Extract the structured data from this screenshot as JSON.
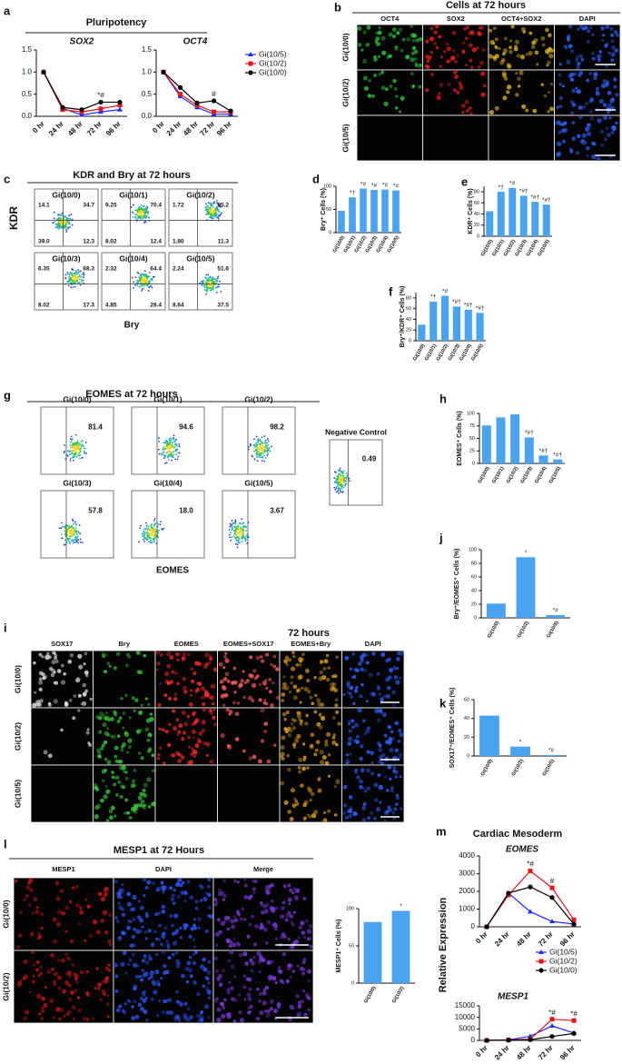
{
  "chart_data": [
    {
      "type": "line",
      "panel": "a",
      "title": "Pluripotency",
      "subtitle": "SOX2",
      "categories": [
        "0 hr",
        "24 hr",
        "48 hr",
        "72 hr",
        "96 hr"
      ],
      "series": [
        {
          "color": "#1f2bff",
          "values": [
            1,
            0.18,
            0.03,
            0.1,
            0.15
          ]
        },
        {
          "color": "#e8141c",
          "values": [
            1,
            0.15,
            0.1,
            0.17,
            0.25
          ]
        },
        {
          "color": "#000000",
          "values": [
            1,
            0.2,
            0.15,
            0.32,
            0.32
          ]
        }
      ],
      "ylim": [
        0,
        1.5
      ],
      "yticks": [
        {
          "value": 0,
          "label": "0.0"
        },
        0.5,
        {
          "value": 1,
          "label": "1.0"
        },
        1.5
      ],
      "annotations": [
        "*#"
      ]
    },
    {
      "type": "line",
      "subtitle": "OCT4",
      "categories": [
        "0 hr",
        "24 hr",
        "48 hr",
        "72 hr",
        "96 hr"
      ],
      "series": [
        {
          "name": "Gi(10/5)",
          "color": "#1f2bff",
          "values": [
            1,
            0.45,
            0.2,
            0.05,
            0.05
          ]
        },
        {
          "name": "Gi(10/2)",
          "color": "#e8141c",
          "values": [
            1,
            0.5,
            0.25,
            0.1,
            0.1
          ]
        },
        {
          "name": "Gi(10/0)",
          "color": "#000000",
          "values": [
            1,
            0.65,
            0.3,
            0.35,
            0.12
          ]
        }
      ],
      "ylim": [
        0,
        1.5
      ],
      "yticks": [
        {
          "value": 0,
          "label": "0.0"
        },
        0.5,
        {
          "value": 1,
          "label": "1.0"
        },
        1.5
      ],
      "annotations": [
        "#"
      ],
      "legend": "right"
    },
    {
      "type": "image-grid",
      "panel": "b",
      "title": "Cells at 72 hours",
      "columns": [
        {
          "name": "OCT4",
          "color": "#22b14c"
        },
        {
          "name": "SOX2",
          "color": "#e8141c"
        },
        {
          "name": "OCT4+SOX2",
          "color": "#c9a21a"
        },
        {
          "name": "DAPI",
          "color": "#1f5fd6"
        }
      ],
      "rows": [
        "Gi(10/0)",
        "Gi(10/2)",
        "Gi(10/5)"
      ]
    },
    {
      "type": "flow",
      "panel": "c",
      "title": "KDR and Bry at 72 hours",
      "xlabel": "Bry",
      "ylabel": "KDR",
      "plots": [
        {
          "name": "Gi(10/0)",
          "values": [
            14.1,
            34.7,
            39,
            12.3
          ],
          "value_labels": [
            "14.1",
            "34.7",
            "39.0",
            "12.3"
          ]
        },
        {
          "name": "Gi(10/1)",
          "values": [
            9.25,
            70.4,
            8.02,
            12.4
          ],
          "value_labels": [
            "9.25",
            "70.4",
            "8.02",
            "12.4"
          ]
        },
        {
          "name": "Gi(10/2)",
          "values": [
            1.72,
            85.2,
            1.8,
            11.3
          ],
          "value_labels": [
            "1.72",
            "85.2",
            "1.80",
            "11.3"
          ]
        },
        {
          "name": "Gi(10/3)",
          "values": [
            6.35,
            68.3,
            8.02,
            17.3
          ],
          "value_labels": [
            "6.35",
            "68.3",
            "8.02",
            "17.3"
          ]
        },
        {
          "name": "Gi(10/4)",
          "values": [
            2.32,
            64.4,
            4.85,
            28.4
          ],
          "value_labels": [
            "2.32",
            "64.4",
            "4.85",
            "28.4"
          ]
        },
        {
          "name": "Gi(10/5)",
          "values": [
            2.24,
            51.6,
            8.64,
            37.5
          ],
          "value_labels": [
            "2.24",
            "51.6",
            "8.64",
            "37.5"
          ]
        }
      ]
    },
    {
      "type": "bar",
      "panel": "d",
      "ylabel": "Bry⁺ Cells (%)",
      "color": "#4aa3ef",
      "categories": [
        "Gi(10/0)",
        "Gi(10/1)",
        "Gi(10/2)",
        "Gi(10/3)",
        "Gi(10/4)",
        "Gi(10/5)"
      ],
      "values": [
        47,
        76,
        95,
        92,
        93,
        91
      ],
      "ylim": [
        0,
        100
      ],
      "yticks": [
        0,
        50,
        100
      ],
      "annotations": [
        null,
        "*†",
        "*#",
        "*#",
        "*#",
        "*#"
      ]
    },
    {
      "type": "bar",
      "panel": "e",
      "ylabel": "KDR⁺ Cells (%)",
      "color": "#4aa3ef",
      "categories": [
        "Gi(10/0)",
        "Gi(10/1)",
        "Gi(10/2)",
        "Gi(10/3)",
        "Gi(10/4)",
        "Gi(10/5)"
      ],
      "values": [
        45,
        80,
        87,
        73,
        62,
        57
      ],
      "ylim": [
        0,
        90
      ],
      "yticks": [
        0,
        20,
        40,
        60,
        80
      ],
      "annotations": [
        null,
        "*†",
        "*#",
        "*#†",
        "*#†",
        "*#†"
      ]
    },
    {
      "type": "bar",
      "panel": "f",
      "ylabel": "Bry⁺/KDR⁺ Cells (%)",
      "color": "#4aa3ef",
      "categories": [
        "Gi(10/0)",
        "Gi(10/1)",
        "Gi(10/2)",
        "Gi(10/3)",
        "Gi(10/4)",
        "Gi(10/5)"
      ],
      "values": [
        30,
        73,
        84,
        64,
        58,
        52
      ],
      "ylim": [
        0,
        90
      ],
      "yticks": [
        0,
        20,
        40,
        60,
        80
      ],
      "annotations": [
        null,
        "*†",
        "*#",
        "*#†",
        "*#†",
        "*#†"
      ]
    },
    {
      "type": "flow",
      "panel": "g",
      "title": "EOMES at 72 hours",
      "xlabel": "EOMES",
      "plots": [
        {
          "name": "Gi(10/0)",
          "values": [
            81.4
          ],
          "value_labels": [
            "81.4"
          ]
        },
        {
          "name": "Gi(10/1)",
          "values": [
            94.6
          ],
          "value_labels": [
            "94.6"
          ]
        },
        {
          "name": "Gi(10/2)",
          "values": [
            98.2
          ],
          "value_labels": [
            "98.2"
          ]
        },
        {
          "name": "Gi(10/3)",
          "values": [
            57.8
          ],
          "value_labels": [
            "57.8"
          ]
        },
        {
          "name": "Gi(10/4)",
          "values": [
            18
          ],
          "value_labels": [
            "18.0"
          ]
        },
        {
          "name": "Gi(10/5)",
          "values": [
            3.67
          ],
          "value_labels": [
            "3.67"
          ]
        }
      ],
      "control": {
        "name": "Negative Control",
        "values": [
          0.49
        ],
        "value_labels": [
          "0.49"
        ]
      }
    },
    {
      "type": "bar",
      "panel": "h",
      "ylabel": "EOMES⁺ Cells (%)",
      "color": "#4aa3ef",
      "categories": [
        "Gi(10/0)",
        "Gi(10/1)",
        "Gi(10/2)",
        "Gi(10/3)",
        "Gi(10/4)",
        "Gi(10/5)"
      ],
      "values": [
        76,
        92,
        98,
        52,
        16,
        8
      ],
      "ylim": [
        0,
        100
      ],
      "yticks": [
        0,
        25,
        50,
        75,
        100
      ],
      "annotations": [
        null,
        null,
        null,
        "*#†",
        "*#†",
        "*#†"
      ]
    },
    {
      "type": "image-grid",
      "panel": "i",
      "title": "72 hours",
      "columns": [
        {
          "name": "SOX17",
          "color": "#aaaaaa"
        },
        {
          "name": "Bry",
          "color": "#22b14c"
        },
        {
          "name": "EOMES",
          "color": "#e8141c"
        },
        {
          "name": "EOMES+SOX17",
          "color": "#000000"
        },
        {
          "name": "EOMES+Bry",
          "color": "#000000"
        },
        {
          "name": "DAPI",
          "color": "#1f5fd6"
        }
      ],
      "rows": [
        "Gi(10/0)",
        "Gi(10/2)",
        "Gi(10/5)"
      ]
    },
    {
      "type": "bar",
      "panel": "j",
      "ylabel": "Bry⁺/EOMES⁺ Cells (%)",
      "color": "#4aa3ef",
      "categories": [
        "Gi(10/0)",
        "Gi(10/2)",
        "Gi(10/5)"
      ],
      "values": [
        21,
        89,
        4
      ],
      "ylim": [
        0,
        100
      ],
      "yticks": [
        0,
        20,
        40,
        60,
        80,
        100
      ],
      "annotations": [
        null,
        "*",
        "*#"
      ]
    },
    {
      "type": "bar",
      "panel": "k",
      "ylabel": "SOX17⁺/EOMES⁺ Cells (%)",
      "color": "#4aa3ef",
      "categories": [
        "Gi(10/0)",
        "Gi(10/2)",
        "Gi(10/5)"
      ],
      "values": [
        43,
        10,
        1
      ],
      "ylim": [
        0,
        60
      ],
      "yticks": [
        0,
        20,
        40,
        60
      ],
      "annotations": [
        null,
        "*",
        "*#"
      ]
    },
    {
      "type": "image-grid",
      "panel": "l",
      "title": "MESP1 at 72 Hours",
      "columns": [
        {
          "name": "MESP1",
          "color": "#e8141c"
        },
        {
          "name": "DAPI",
          "color": "#1f5fd6"
        },
        {
          "name": "Merge",
          "color": "#000000"
        }
      ],
      "rows": [
        "Gi(10/0)",
        "Gi(10/2)"
      ]
    },
    {
      "type": "bar",
      "ylabel": "MESP1⁺ Cells (%)",
      "color": "#4aa3ef",
      "categories": [
        "Gi(10/0)",
        "Gi(10/2)"
      ],
      "values": [
        82,
        97
      ],
      "ylim": [
        0,
        100
      ],
      "yticks": [
        0,
        50,
        100
      ],
      "annotations": [
        null,
        "*"
      ]
    },
    {
      "type": "line",
      "panel": "m",
      "title": "Cardiac Mesoderm",
      "subtitle": "EOMES",
      "ylabel": "Relative Expression",
      "categories": [
        "0 hr",
        "24 hr",
        "48 hr",
        "72 hr",
        "96 hr"
      ],
      "series": [
        {
          "color": "#1f2bff",
          "values": [
            0,
            1900,
            850,
            300,
            150
          ]
        },
        {
          "color": "#e8141c",
          "values": [
            0,
            1800,
            3150,
            2200,
            400
          ]
        },
        {
          "color": "#000000",
          "values": [
            0,
            1900,
            2250,
            1650,
            150
          ]
        }
      ],
      "ylim": [
        0,
        4000
      ],
      "yticks": [
        0,
        1000,
        2000,
        3000,
        4000
      ],
      "annotations": [
        "*#",
        "#"
      ]
    },
    {
      "type": "line",
      "subtitle": "MESP1",
      "categories": [
        "0 hr",
        "24 hr",
        "48 hr",
        "72 hr",
        "96 hr"
      ],
      "series": [
        {
          "name": "Gi(10/5)",
          "color": "#1f2bff",
          "values": [
            0,
            200,
            1800,
            6300,
            3200
          ]
        },
        {
          "name": "Gi(10/2)",
          "color": "#e8141c",
          "values": [
            0,
            200,
            500,
            9200,
            8600
          ]
        },
        {
          "name": "Gi(10/0)",
          "color": "#000000",
          "values": [
            0,
            100,
            300,
            1700,
            3000
          ]
        }
      ],
      "ylim": [
        0,
        15000
      ],
      "yticks": [
        0,
        5000,
        10000,
        15000
      ],
      "annotations": [
        "*#",
        "*#"
      ],
      "legend": "right"
    }
  ]
}
